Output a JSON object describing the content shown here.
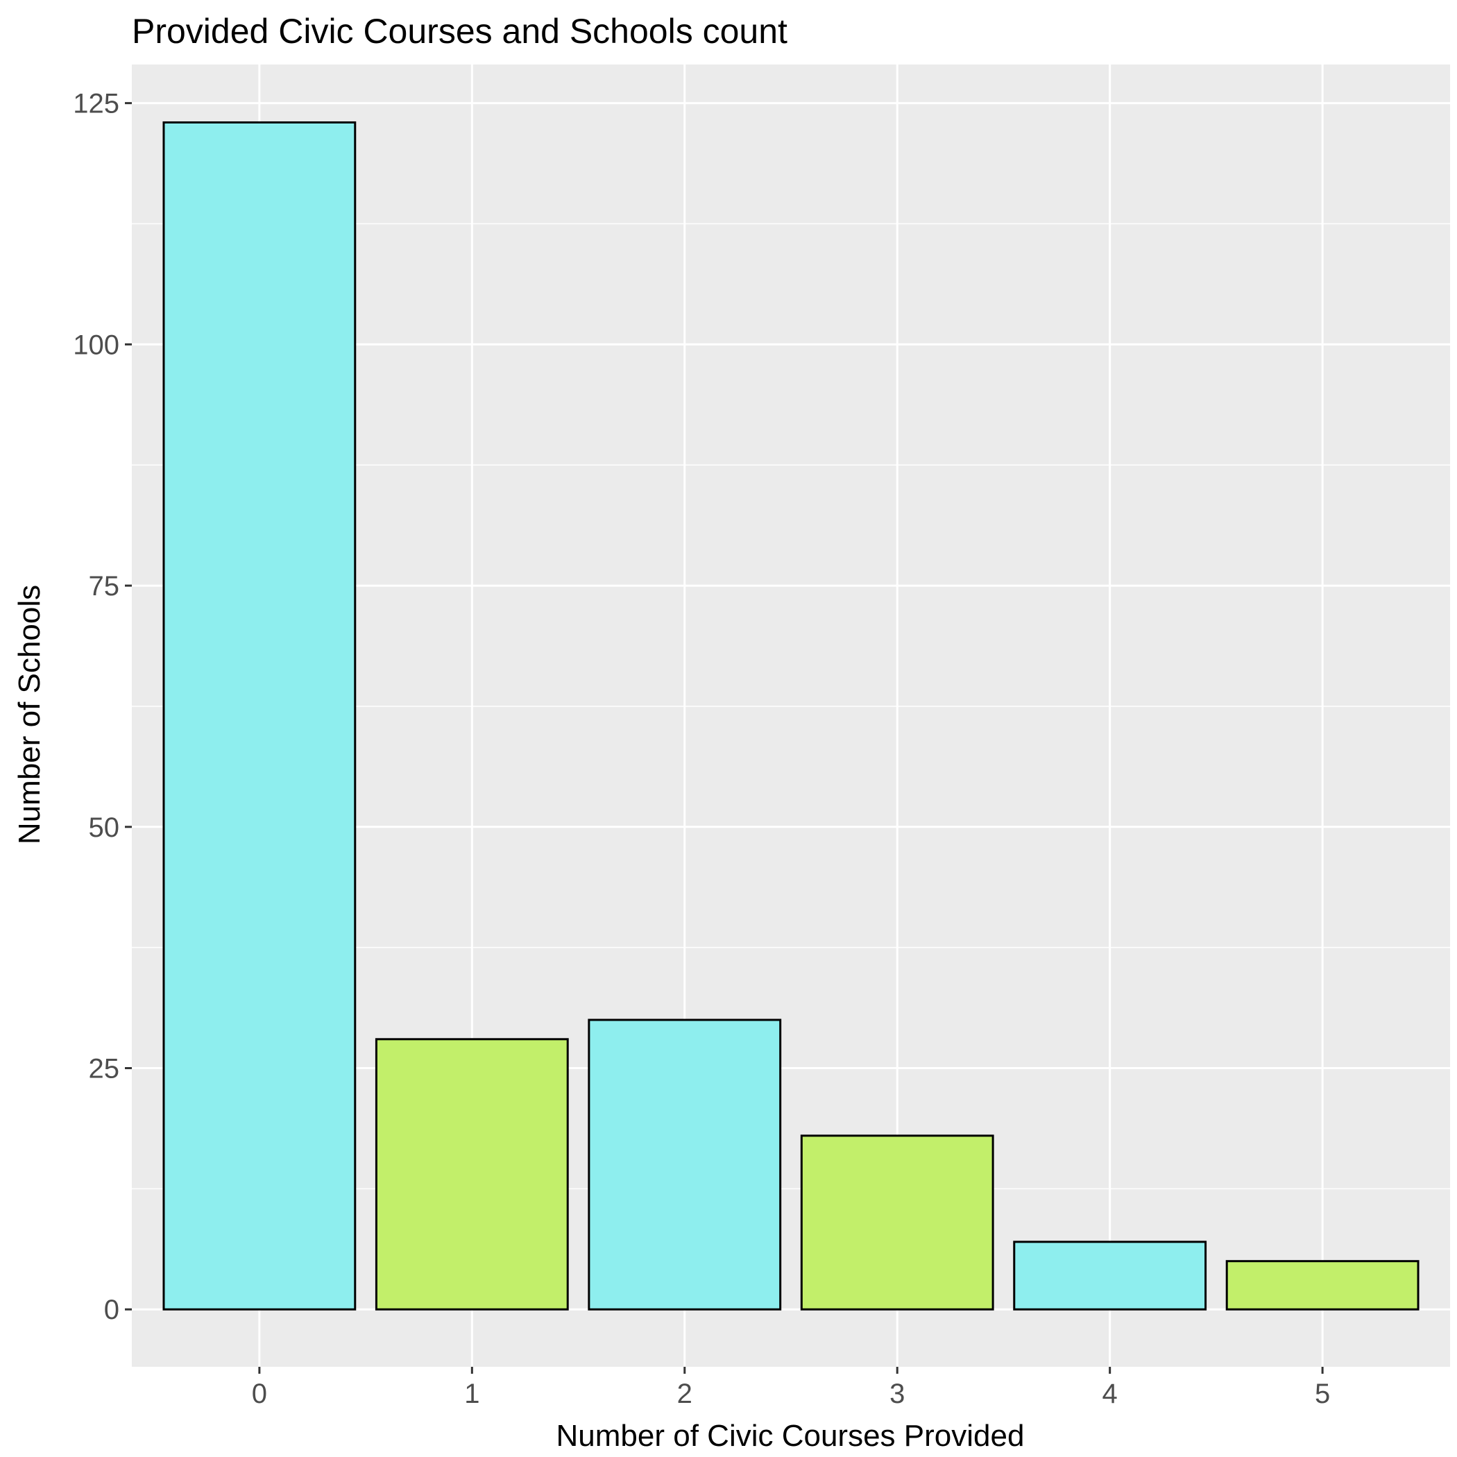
{
  "chart_data": {
    "type": "bar",
    "title": "Provided Civic Courses and Schools count",
    "xlabel": "Number of Civic Courses Provided",
    "ylabel": "Number of Schools",
    "categories": [
      "0",
      "1",
      "2",
      "3",
      "4",
      "5"
    ],
    "values": [
      123,
      28,
      30,
      18,
      7,
      5
    ],
    "bar_colors": [
      "#8EEEEE",
      "#C2EF6A",
      "#8EEEEE",
      "#C2EF6A",
      "#8EEEEE",
      "#C2EF6A"
    ],
    "bar_outline_color": "#000000",
    "ylim": [
      -5.95,
      129
    ],
    "yticks": [
      0,
      25,
      50,
      75,
      100,
      125
    ],
    "grid": true,
    "panel_background": "#EBEBEB",
    "legend": "none"
  }
}
